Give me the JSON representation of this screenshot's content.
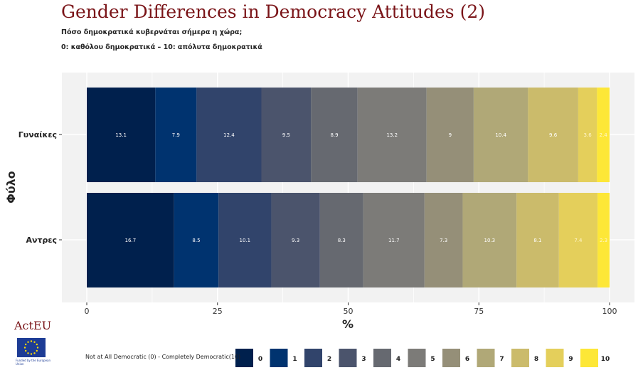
{
  "title": "Gender Differences in Democracy Attitudes (2)",
  "subtitle_1": "Πόσο δημοκρατικά κυβερνάται σήμερα η χώρα;",
  "subtitle_2": "0: καθόλου δημοκρατικά – 10: απόλυτα δημοκρατικά",
  "logo": {
    "text": "ActEU",
    "eu_caption": "Funded by the European Union"
  },
  "legend_title": "Not at All Democratic (0) - Completely Democratic(10)",
  "colors": [
    "#00204d",
    "#00336f",
    "#31446b",
    "#4b546c",
    "#666970",
    "#7c7b78",
    "#958f78",
    "#b0a877",
    "#cbbb6b",
    "#e4cf5b",
    "#fde737"
  ],
  "chart_data": {
    "type": "bar",
    "orientation": "horizontal",
    "stacked": true,
    "categories": [
      "Γυναίκες",
      "Αντρες"
    ],
    "series": [
      {
        "name": "0",
        "values": [
          13.1,
          16.7
        ]
      },
      {
        "name": "1",
        "values": [
          7.9,
          8.5
        ]
      },
      {
        "name": "2",
        "values": [
          12.4,
          10.1
        ]
      },
      {
        "name": "3",
        "values": [
          9.5,
          9.3
        ]
      },
      {
        "name": "4",
        "values": [
          8.9,
          8.3
        ]
      },
      {
        "name": "5",
        "values": [
          13.2,
          11.7
        ]
      },
      {
        "name": "6",
        "values": [
          9,
          7.3
        ]
      },
      {
        "name": "7",
        "values": [
          10.4,
          10.3
        ]
      },
      {
        "name": "8",
        "values": [
          9.6,
          8.1
        ]
      },
      {
        "name": "9",
        "values": [
          3.6,
          7.4
        ]
      },
      {
        "name": "10",
        "values": [
          2.4,
          2.3
        ]
      }
    ],
    "xlabel": "%",
    "ylabel": "Φύλο",
    "xlim": [
      0,
      100
    ],
    "xticks": [
      0,
      25,
      50,
      75,
      100
    ],
    "legend_position": "bottom",
    "grid": true
  }
}
